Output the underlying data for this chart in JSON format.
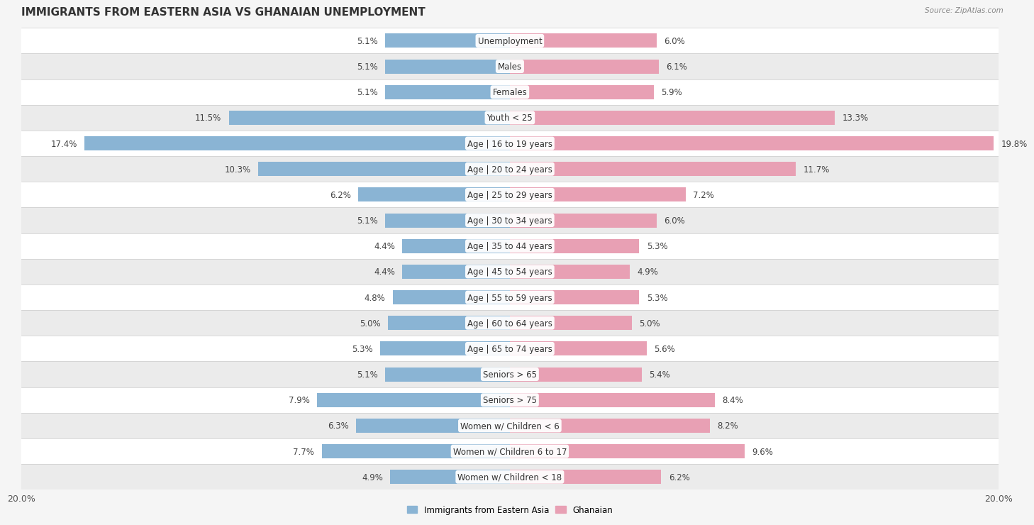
{
  "title": "IMMIGRANTS FROM EASTERN ASIA VS GHANAIAN UNEMPLOYMENT",
  "source": "Source: ZipAtlas.com",
  "categories": [
    "Unemployment",
    "Males",
    "Females",
    "Youth < 25",
    "Age | 16 to 19 years",
    "Age | 20 to 24 years",
    "Age | 25 to 29 years",
    "Age | 30 to 34 years",
    "Age | 35 to 44 years",
    "Age | 45 to 54 years",
    "Age | 55 to 59 years",
    "Age | 60 to 64 years",
    "Age | 65 to 74 years",
    "Seniors > 65",
    "Seniors > 75",
    "Women w/ Children < 6",
    "Women w/ Children 6 to 17",
    "Women w/ Children < 18"
  ],
  "left_values": [
    5.1,
    5.1,
    5.1,
    11.5,
    17.4,
    10.3,
    6.2,
    5.1,
    4.4,
    4.4,
    4.8,
    5.0,
    5.3,
    5.1,
    7.9,
    6.3,
    7.7,
    4.9
  ],
  "right_values": [
    6.0,
    6.1,
    5.9,
    13.3,
    19.8,
    11.7,
    7.2,
    6.0,
    5.3,
    4.9,
    5.3,
    5.0,
    5.6,
    5.4,
    8.4,
    8.2,
    9.6,
    6.2
  ],
  "left_color": "#8ab4d4",
  "right_color": "#e8a0b4",
  "left_label": "Immigrants from Eastern Asia",
  "right_label": "Ghanaian",
  "xlim": 20.0,
  "bg_row_even": "#f5f5f5",
  "bg_row_odd": "#e8e8e8",
  "title_fontsize": 11,
  "label_fontsize": 8.5,
  "value_fontsize": 8.5,
  "axis_fontsize": 9
}
